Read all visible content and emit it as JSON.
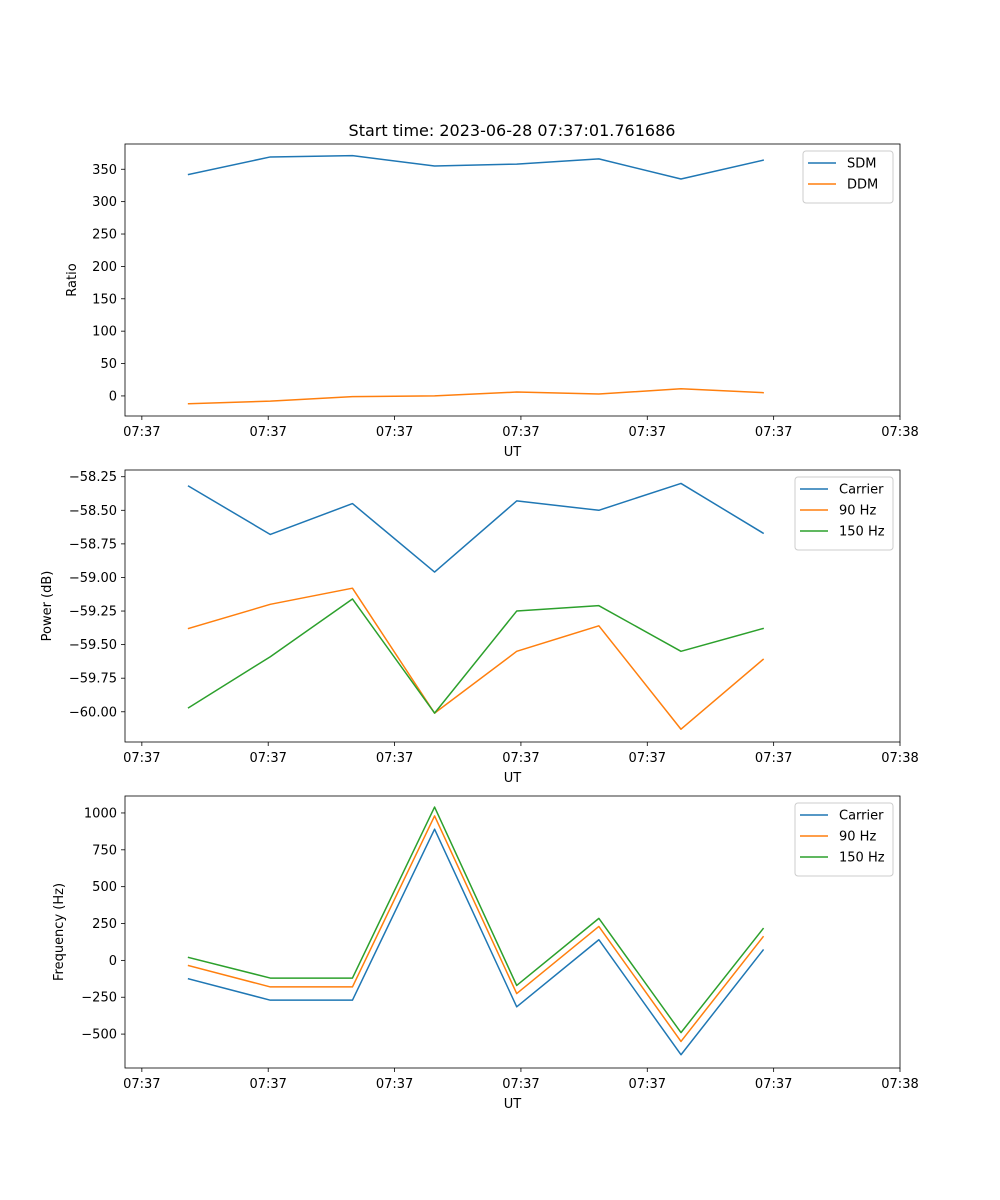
{
  "figure_title": "Start time: 2023-06-28 07:37:01.761686",
  "colors": {
    "blue": "#1f77b4",
    "orange": "#ff7f0e",
    "green": "#2ca02c"
  },
  "chart_data": [
    {
      "type": "line",
      "title": "Start time: 2023-06-28 07:37:01.761686",
      "xlabel": "UT",
      "ylabel": "Ratio",
      "x": [
        "07:37:01.761",
        "07:37:01.955",
        "07:37:02.150",
        "07:37:02.345",
        "07:37:02.540",
        "07:37:02.735",
        "07:37:02.930",
        "07:37:03.125"
      ],
      "xlim": [
        "07:37:01.61",
        "07:37:03.45"
      ],
      "xticks": [
        "07:37:01.65",
        "07:37:01.95",
        "07:37:02.25",
        "07:37:02.55",
        "07:37:02.85",
        "07:37:03.15",
        "07:37:03.45"
      ],
      "xtick_labels": [
        "07:37",
        "07:37",
        "07:37",
        "07:37",
        "07:37",
        "07:37",
        "07:38"
      ],
      "ylim": [
        -31,
        389
      ],
      "yticks": [
        0,
        50,
        100,
        150,
        200,
        250,
        300,
        350
      ],
      "ytick_labels": [
        "0",
        "50",
        "100",
        "150",
        "200",
        "250",
        "300",
        "350"
      ],
      "grid": false,
      "legend": "top-right",
      "series": [
        {
          "name": "SDM",
          "color": "#1f77b4",
          "values": [
            342,
            369,
            371,
            355,
            358,
            366,
            335,
            364
          ]
        },
        {
          "name": "DDM",
          "color": "#ff7f0e",
          "values": [
            -12,
            -8,
            -1,
            0,
            6,
            3,
            11,
            5
          ]
        }
      ]
    },
    {
      "type": "line",
      "xlabel": "UT",
      "ylabel": "Power (dB)",
      "x": [
        "07:37:01.761",
        "07:37:01.955",
        "07:37:02.150",
        "07:37:02.345",
        "07:37:02.540",
        "07:37:02.735",
        "07:37:02.930",
        "07:37:03.125"
      ],
      "xlim": [
        "07:37:01.61",
        "07:37:03.45"
      ],
      "xticks": [
        "07:37:01.65",
        "07:37:01.95",
        "07:37:02.25",
        "07:37:02.55",
        "07:37:02.85",
        "07:37:03.15",
        "07:37:03.45"
      ],
      "xtick_labels": [
        "07:37",
        "07:37",
        "07:37",
        "07:37",
        "07:37",
        "07:37",
        "07:38"
      ],
      "ylim": [
        -60.225,
        -58.2
      ],
      "yticks": [
        -60.0,
        -59.75,
        -59.5,
        -59.25,
        -59.0,
        -58.75,
        -58.5,
        -58.25
      ],
      "ytick_labels": [
        "−60.00",
        "−59.75",
        "−59.50",
        "−59.25",
        "−59.00",
        "−58.75",
        "−58.50",
        "−58.25"
      ],
      "grid": false,
      "legend": "top-right",
      "series": [
        {
          "name": "Carrier",
          "color": "#1f77b4",
          "values": [
            -58.32,
            -58.68,
            -58.45,
            -58.96,
            -58.43,
            -58.5,
            -58.3,
            -58.67
          ]
        },
        {
          "name": "90 Hz",
          "color": "#ff7f0e",
          "values": [
            -59.38,
            -59.2,
            -59.08,
            -60.01,
            -59.55,
            -59.36,
            -60.13,
            -59.61
          ]
        },
        {
          "name": "150 Hz",
          "color": "#2ca02c",
          "values": [
            -59.97,
            -59.59,
            -59.16,
            -60.01,
            -59.25,
            -59.21,
            -59.55,
            -59.38
          ]
        }
      ]
    },
    {
      "type": "line",
      "xlabel": "UT",
      "ylabel": "Frequency (Hz)",
      "x": [
        "07:37:01.761",
        "07:37:01.955",
        "07:37:02.150",
        "07:37:02.345",
        "07:37:02.540",
        "07:37:02.735",
        "07:37:02.930",
        "07:37:03.125"
      ],
      "xlim": [
        "07:37:01.61",
        "07:37:03.45"
      ],
      "xticks": [
        "07:37:01.65",
        "07:37:01.95",
        "07:37:02.25",
        "07:37:02.55",
        "07:37:02.85",
        "07:37:03.15",
        "07:37:03.45"
      ],
      "xtick_labels": [
        "07:37",
        "07:37",
        "07:37",
        "07:37",
        "07:37",
        "07:37",
        "07:38"
      ],
      "ylim": [
        -730,
        1115
      ],
      "yticks": [
        -500,
        -250,
        0,
        250,
        500,
        750,
        1000
      ],
      "ytick_labels": [
        "−500",
        "−250",
        "0",
        "250",
        "500",
        "750",
        "1000"
      ],
      "grid": false,
      "legend": "top-right",
      "series": [
        {
          "name": "Carrier",
          "color": "#1f77b4",
          "values": [
            -125,
            -270,
            -270,
            890,
            -315,
            140,
            -640,
            70
          ]
        },
        {
          "name": "90 Hz",
          "color": "#ff7f0e",
          "values": [
            -35,
            -180,
            -180,
            980,
            -225,
            230,
            -550,
            160
          ]
        },
        {
          "name": "150 Hz",
          "color": "#2ca02c",
          "values": [
            20,
            -120,
            -120,
            1040,
            -170,
            285,
            -490,
            215
          ]
        }
      ]
    }
  ]
}
